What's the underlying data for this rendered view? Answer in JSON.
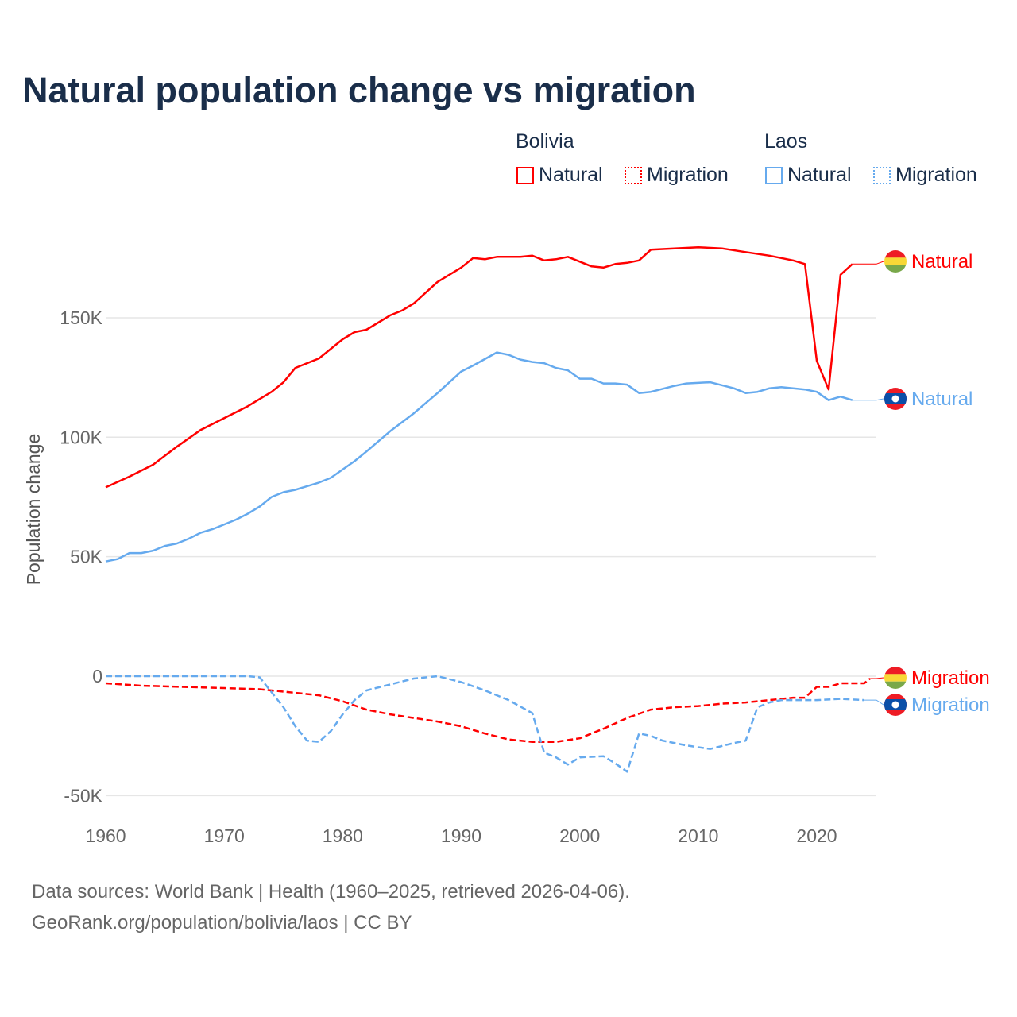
{
  "title": "Natural population change vs migration",
  "legend": {
    "groups": [
      {
        "name": "Bolivia",
        "items": [
          "Natural",
          "Migration"
        ]
      },
      {
        "name": "Laos",
        "items": [
          "Natural",
          "Migration"
        ]
      }
    ]
  },
  "footer": {
    "line1": "Data sources: World Bank | Health (1960–2025, retrieved 2026-04-06).",
    "line2": "GeoRank.org/population/bolivia/laos | CC BY"
  },
  "colors": {
    "bolivia": "#ff0000",
    "laos": "#66aaee"
  },
  "chart_data": {
    "type": "line",
    "title": "Natural population change vs migration",
    "ylabel": "Population change",
    "xlabel": "",
    "xlim": [
      1960,
      2025
    ],
    "ylim": [
      -50000,
      180000
    ],
    "xticks": [
      "1960",
      "1970",
      "1980",
      "1990",
      "2000",
      "2010",
      "2020"
    ],
    "yticks": [
      {
        "v": -50000,
        "label": "-50K"
      },
      {
        "v": 0,
        "label": "0"
      },
      {
        "v": 50000,
        "label": "50K"
      },
      {
        "v": 100000,
        "label": "100K"
      },
      {
        "v": 150000,
        "label": "150K"
      }
    ],
    "grid": true,
    "series": [
      {
        "name": "Bolivia Natural",
        "country": "Bolivia",
        "kind": "Natural",
        "end_label": "Natural",
        "dashed": false,
        "color": "#ff0000",
        "points": [
          [
            1960,
            79
          ],
          [
            1962,
            83.5
          ],
          [
            1964,
            88.5
          ],
          [
            1966,
            96
          ],
          [
            1968,
            103
          ],
          [
            1970,
            108
          ],
          [
            1972,
            113
          ],
          [
            1974,
            119
          ],
          [
            1975,
            123
          ],
          [
            1976,
            129
          ],
          [
            1978,
            133
          ],
          [
            1980,
            141
          ],
          [
            1981,
            144
          ],
          [
            1982,
            145
          ],
          [
            1983,
            148
          ],
          [
            1984,
            151
          ],
          [
            1985,
            153
          ],
          [
            1986,
            156
          ],
          [
            1988,
            165
          ],
          [
            1990,
            171
          ],
          [
            1991,
            175
          ],
          [
            1992,
            174.5
          ],
          [
            1993,
            175.5
          ],
          [
            1995,
            175.5
          ],
          [
            1996,
            176
          ],
          [
            1997,
            174
          ],
          [
            1998,
            174.5
          ],
          [
            1999,
            175.5
          ],
          [
            2000,
            173.5
          ],
          [
            2001,
            171.5
          ],
          [
            2002,
            171
          ],
          [
            2003,
            172.5
          ],
          [
            2004,
            173
          ],
          [
            2005,
            174
          ],
          [
            2006,
            178.5
          ],
          [
            2008,
            179
          ],
          [
            2010,
            179.5
          ],
          [
            2012,
            179
          ],
          [
            2014,
            177.5
          ],
          [
            2016,
            176
          ],
          [
            2018,
            174
          ],
          [
            2019,
            172.5
          ],
          [
            2020,
            132
          ],
          [
            2021,
            120
          ],
          [
            2022,
            168
          ],
          [
            2023,
            172.5
          ]
        ]
      },
      {
        "name": "Bolivia Migration",
        "country": "Bolivia",
        "kind": "Migration",
        "end_label": "Migration",
        "dashed": true,
        "color": "#ff0000",
        "points": [
          [
            1960,
            -3
          ],
          [
            1963,
            -4
          ],
          [
            1970,
            -5
          ],
          [
            1973,
            -5.5
          ],
          [
            1976,
            -7
          ],
          [
            1978,
            -8
          ],
          [
            1980,
            -10.5
          ],
          [
            1982,
            -14
          ],
          [
            1984,
            -16
          ],
          [
            1986,
            -17.5
          ],
          [
            1988,
            -19
          ],
          [
            1990,
            -21
          ],
          [
            1992,
            -24
          ],
          [
            1994,
            -26.5
          ],
          [
            1996,
            -27.5
          ],
          [
            1998,
            -27.5
          ],
          [
            2000,
            -26
          ],
          [
            2002,
            -22
          ],
          [
            2004,
            -17.5
          ],
          [
            2006,
            -14
          ],
          [
            2008,
            -13
          ],
          [
            2010,
            -12.5
          ],
          [
            2012,
            -11.5
          ],
          [
            2014,
            -11
          ],
          [
            2016,
            -10
          ],
          [
            2018,
            -9
          ],
          [
            2019,
            -9
          ],
          [
            2020,
            -4.5
          ],
          [
            2021,
            -4.5
          ],
          [
            2022,
            -3
          ],
          [
            2024,
            -3
          ],
          [
            2024.5,
            -1
          ]
        ]
      },
      {
        "name": "Laos Natural",
        "country": "Laos",
        "kind": "Natural",
        "end_label": "Natural",
        "dashed": false,
        "color": "#66aaee",
        "points": [
          [
            1960,
            48
          ],
          [
            1961,
            49
          ],
          [
            1962,
            51.5
          ],
          [
            1963,
            51.5
          ],
          [
            1964,
            52.5
          ],
          [
            1965,
            54.5
          ],
          [
            1966,
            55.5
          ],
          [
            1967,
            57.5
          ],
          [
            1968,
            60
          ],
          [
            1969,
            61.5
          ],
          [
            1970,
            63.5
          ],
          [
            1971,
            65.5
          ],
          [
            1972,
            68
          ],
          [
            1973,
            71
          ],
          [
            1974,
            75
          ],
          [
            1975,
            77
          ],
          [
            1976,
            78
          ],
          [
            1977,
            79.5
          ],
          [
            1978,
            81
          ],
          [
            1979,
            83
          ],
          [
            1980,
            86.5
          ],
          [
            1981,
            90
          ],
          [
            1982,
            94
          ],
          [
            1984,
            102.5
          ],
          [
            1986,
            110
          ],
          [
            1988,
            118.5
          ],
          [
            1990,
            127.5
          ],
          [
            1991,
            130
          ],
          [
            1993,
            135.5
          ],
          [
            1994,
            134.5
          ],
          [
            1995,
            132.5
          ],
          [
            1996,
            131.5
          ],
          [
            1997,
            131
          ],
          [
            1998,
            129
          ],
          [
            1999,
            128
          ],
          [
            2000,
            124.5
          ],
          [
            2001,
            124.5
          ],
          [
            2002,
            122.5
          ],
          [
            2003,
            122.5
          ],
          [
            2004,
            122
          ],
          [
            2005,
            118.5
          ],
          [
            2006,
            119
          ],
          [
            2008,
            121.5
          ],
          [
            2009,
            122.5
          ],
          [
            2011,
            123
          ],
          [
            2013,
            120.5
          ],
          [
            2014,
            118.5
          ],
          [
            2015,
            119
          ],
          [
            2016,
            120.5
          ],
          [
            2017,
            121
          ],
          [
            2019,
            120
          ],
          [
            2020,
            119
          ],
          [
            2021,
            115.5
          ],
          [
            2022,
            117
          ],
          [
            2023,
            115.5
          ]
        ]
      },
      {
        "name": "Laos Migration",
        "country": "Laos",
        "kind": "Migration",
        "end_label": "Migration",
        "dashed": true,
        "color": "#66aaee",
        "points": [
          [
            1960,
            0
          ],
          [
            1972,
            0
          ],
          [
            1973,
            -0.5
          ],
          [
            1975,
            -13
          ],
          [
            1976,
            -21
          ],
          [
            1977,
            -27
          ],
          [
            1978,
            -27.5
          ],
          [
            1979,
            -23
          ],
          [
            1980,
            -16
          ],
          [
            1981,
            -10
          ],
          [
            1982,
            -6
          ],
          [
            1984,
            -3.5
          ],
          [
            1986,
            -1
          ],
          [
            1988,
            0
          ],
          [
            1990,
            -2.5
          ],
          [
            1992,
            -6
          ],
          [
            1994,
            -10
          ],
          [
            1996,
            -15.5
          ],
          [
            1997,
            -32
          ],
          [
            1998,
            -34
          ],
          [
            1999,
            -37
          ],
          [
            2000,
            -34
          ],
          [
            2002,
            -33.5
          ],
          [
            2003,
            -36.5
          ],
          [
            2004,
            -40
          ],
          [
            2005,
            -24
          ],
          [
            2006,
            -25
          ],
          [
            2007,
            -27
          ],
          [
            2009,
            -29
          ],
          [
            2011,
            -30.5
          ],
          [
            2013,
            -28
          ],
          [
            2014,
            -27
          ],
          [
            2015,
            -13
          ],
          [
            2016,
            -11
          ],
          [
            2017,
            -10
          ],
          [
            2020,
            -10
          ],
          [
            2022,
            -9.5
          ],
          [
            2024,
            -10
          ]
        ]
      }
    ],
    "value_units": "thousands"
  }
}
